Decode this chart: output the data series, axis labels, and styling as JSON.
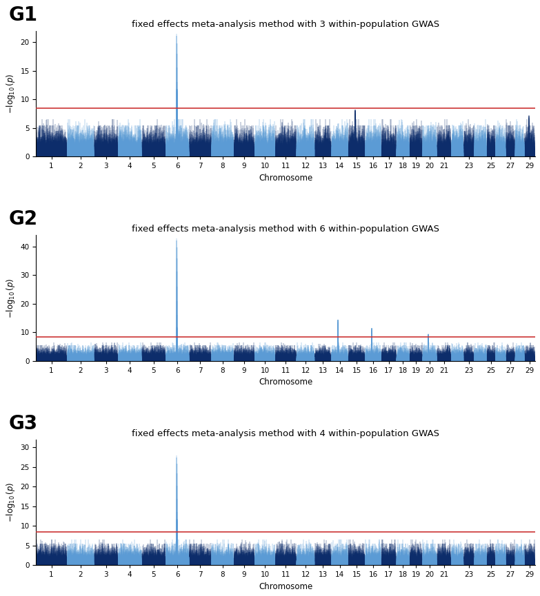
{
  "panels": [
    {
      "label": "G1",
      "title": "fixed effects meta-analysis method with 3 within-population GWAS",
      "ylim": [
        0,
        22
      ],
      "yticks": [
        0,
        5,
        10,
        15,
        20
      ],
      "threshold": 8.5,
      "peak_chr": 6,
      "peak_val": 21.5,
      "secondary_peaks": {
        "15": 8.2,
        "29": 7.2
      }
    },
    {
      "label": "G2",
      "title": "fixed effects meta-analysis method with 6 within-population GWAS",
      "ylim": [
        0,
        44
      ],
      "yticks": [
        0,
        10,
        20,
        30,
        40
      ],
      "threshold": 8.5,
      "peak_chr": 6,
      "peak_val": 43.0,
      "secondary_peaks": {
        "14": 14.5,
        "16": 11.5,
        "20": 9.5
      }
    },
    {
      "label": "G3",
      "title": "fixed effects meta-analysis method with 4 within-population GWAS",
      "ylim": [
        0,
        32
      ],
      "yticks": [
        0,
        5,
        10,
        15,
        20,
        25,
        30
      ],
      "threshold": 8.5,
      "peak_chr": 6,
      "peak_val": 28.0,
      "secondary_peaks": {}
    }
  ],
  "color_odd": "#0d2d6b",
  "color_even": "#5b9bd5",
  "threshold_color": "#cc3333",
  "threshold_lw": 1.2,
  "xlabel": "Chromosome",
  "ylabel": "$-\\log_{10}(p)$",
  "bg_color": "#ffffff",
  "label_fontsize": 20,
  "title_fontsize": 9.5,
  "tick_fontsize": 7.5,
  "axis_label_fontsize": 8.5
}
